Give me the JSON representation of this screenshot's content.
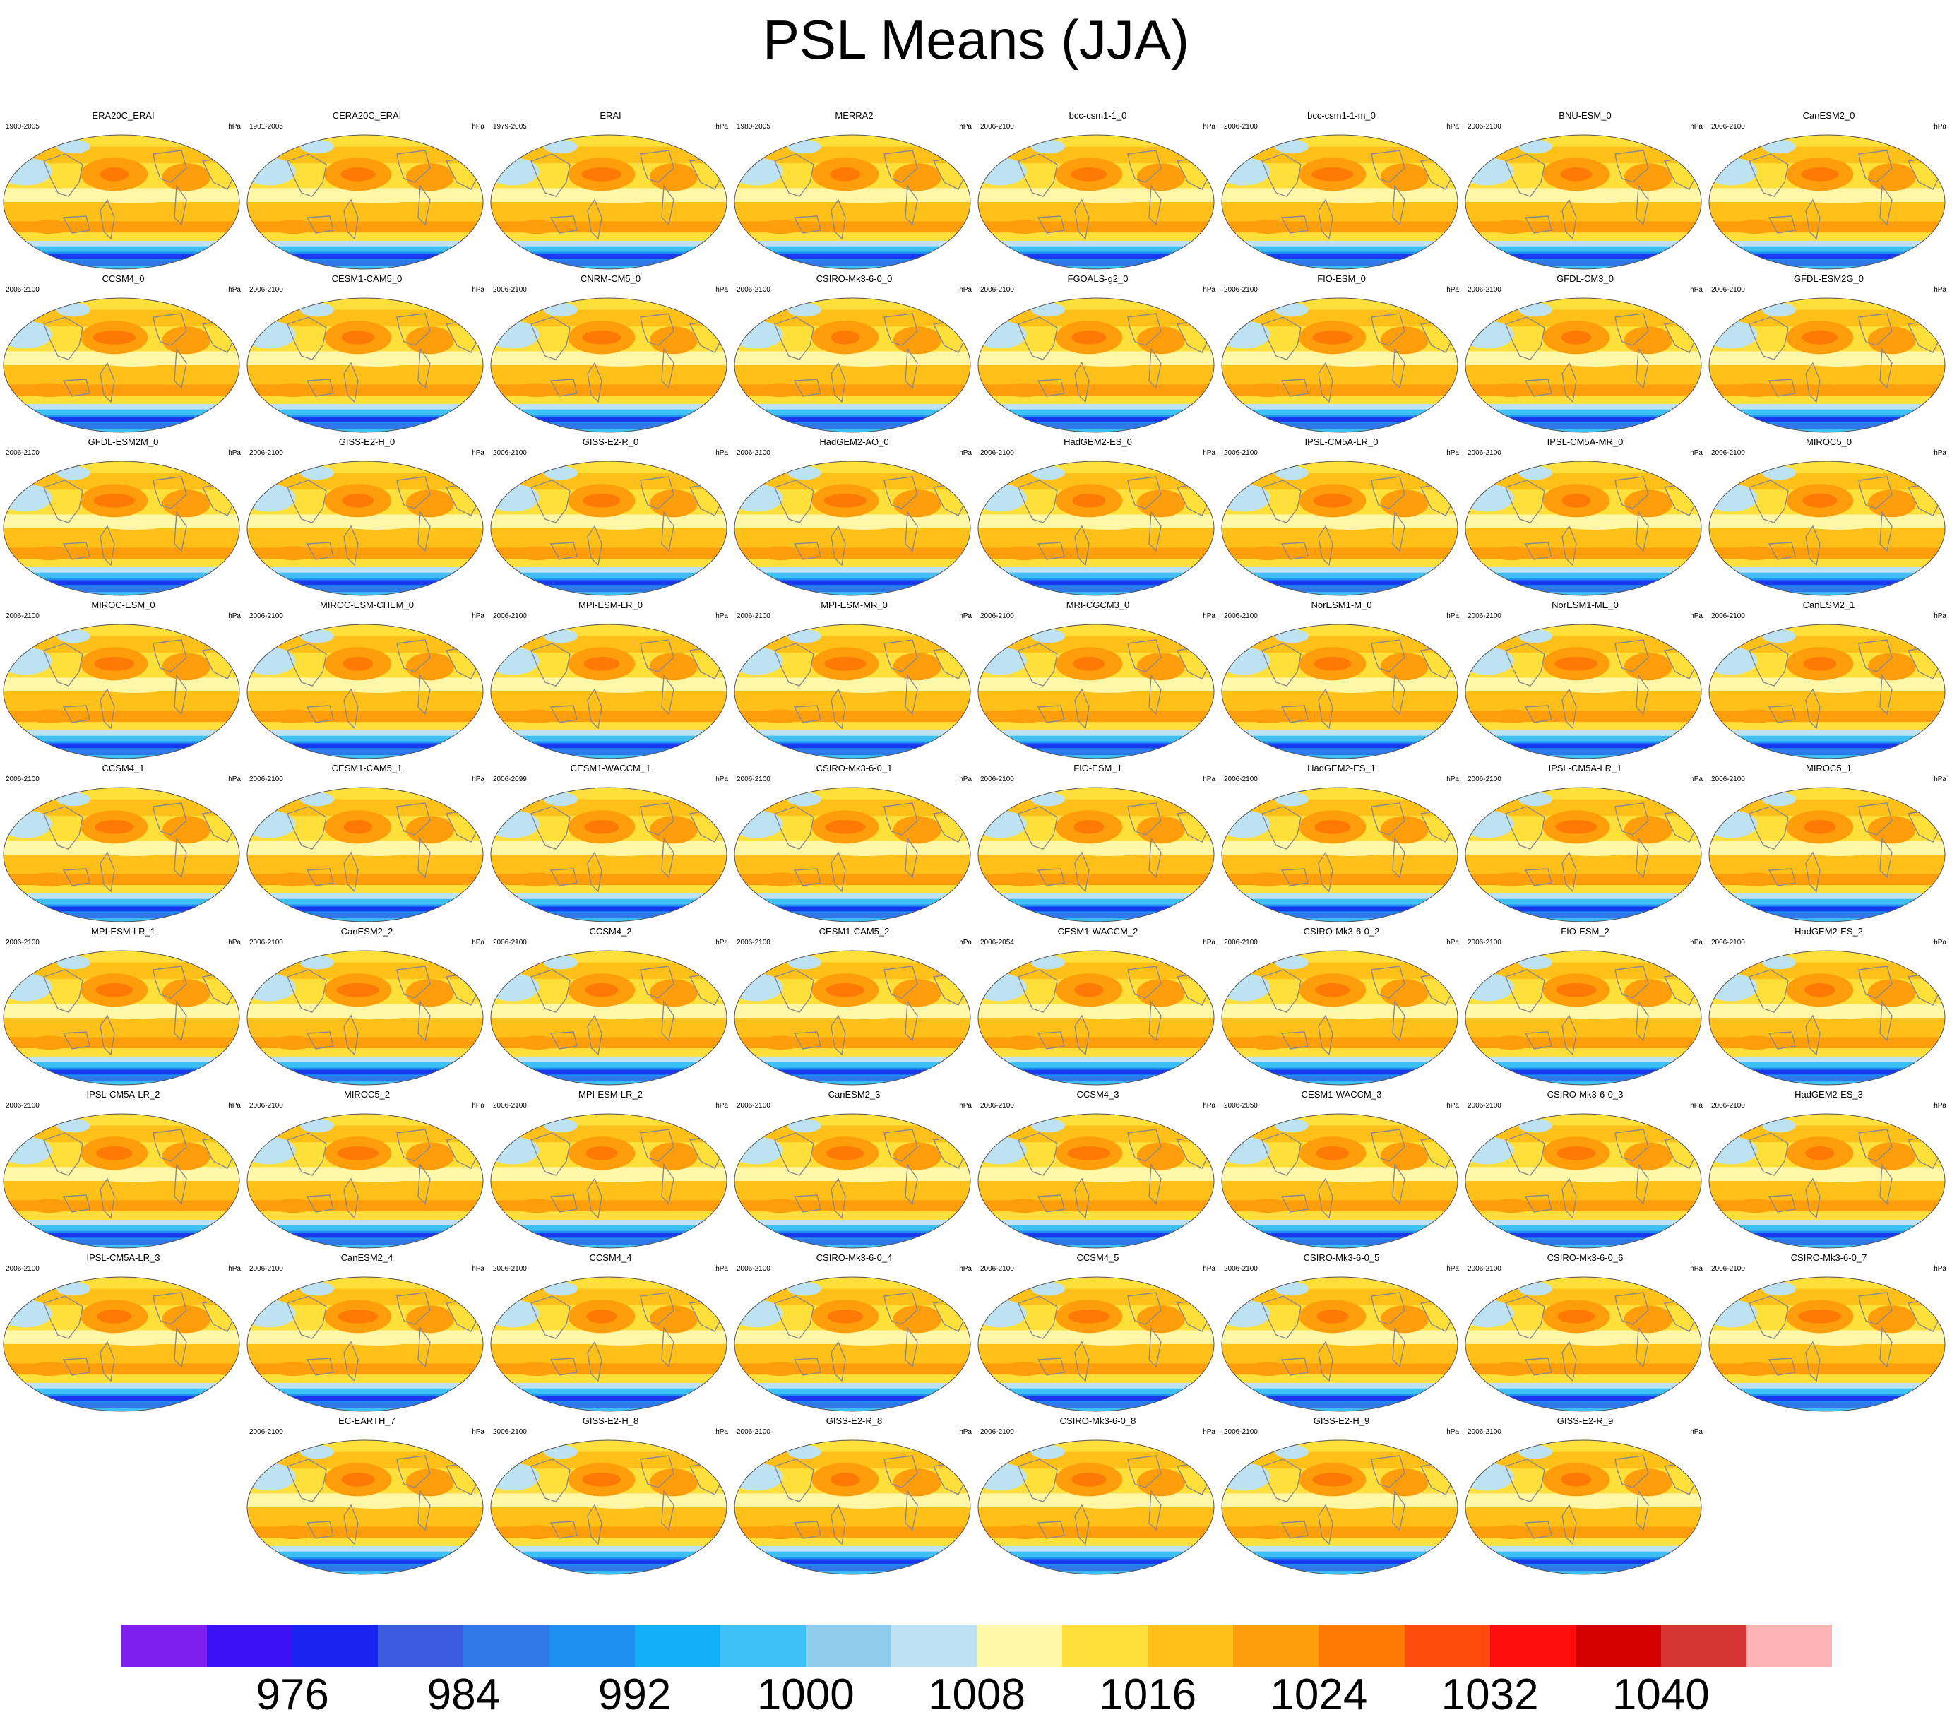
{
  "title": "PSL Means (JJA)",
  "unit": "hPa",
  "colorbar": {
    "colors": [
      "#7f1fef",
      "#3a10f4",
      "#1a22f0",
      "#3b59dc",
      "#2e78ea",
      "#1e90f2",
      "#12b1f7",
      "#3cc0f5",
      "#8fcbeb",
      "#bde2f2",
      "#fff7a8",
      "#ffe03a",
      "#ffc019",
      "#ff9e0a",
      "#ff7a05",
      "#ff4b0e",
      "#ff0c0c",
      "#d40000",
      "#d43434",
      "#ffb4b4"
    ],
    "tick_labels": [
      "976",
      "984",
      "992",
      "1000",
      "1008",
      "1016",
      "1024",
      "1032",
      "1040"
    ]
  },
  "panels": [
    {
      "name": "ERA20C_ERAI",
      "years": "1900-2005"
    },
    {
      "name": "CERA20C_ERAI",
      "years": "1901-2005"
    },
    {
      "name": "ERAI",
      "years": "1979-2005"
    },
    {
      "name": "MERRA2",
      "years": "1980-2005"
    },
    {
      "name": "bcc-csm1-1_0",
      "years": "2006-2100"
    },
    {
      "name": "bcc-csm1-1-m_0",
      "years": "2006-2100"
    },
    {
      "name": "BNU-ESM_0",
      "years": "2006-2100"
    },
    {
      "name": "CanESM2_0",
      "years": "2006-2100"
    },
    {
      "name": "CCSM4_0",
      "years": "2006-2100"
    },
    {
      "name": "CESM1-CAM5_0",
      "years": "2006-2100"
    },
    {
      "name": "CNRM-CM5_0",
      "years": "2006-2100"
    },
    {
      "name": "CSIRO-Mk3-6-0_0",
      "years": "2006-2100"
    },
    {
      "name": "FGOALS-g2_0",
      "years": "2006-2100"
    },
    {
      "name": "FIO-ESM_0",
      "years": "2006-2100"
    },
    {
      "name": "GFDL-CM3_0",
      "years": "2006-2100"
    },
    {
      "name": "GFDL-ESM2G_0",
      "years": "2006-2100"
    },
    {
      "name": "GFDL-ESM2M_0",
      "years": "2006-2100"
    },
    {
      "name": "GISS-E2-H_0",
      "years": "2006-2100"
    },
    {
      "name": "GISS-E2-R_0",
      "years": "2006-2100"
    },
    {
      "name": "HadGEM2-AO_0",
      "years": "2006-2100"
    },
    {
      "name": "HadGEM2-ES_0",
      "years": "2006-2100"
    },
    {
      "name": "IPSL-CM5A-LR_0",
      "years": "2006-2100"
    },
    {
      "name": "IPSL-CM5A-MR_0",
      "years": "2006-2100"
    },
    {
      "name": "MIROC5_0",
      "years": "2006-2100"
    },
    {
      "name": "MIROC-ESM_0",
      "years": "2006-2100"
    },
    {
      "name": "MIROC-ESM-CHEM_0",
      "years": "2006-2100"
    },
    {
      "name": "MPI-ESM-LR_0",
      "years": "2006-2100"
    },
    {
      "name": "MPI-ESM-MR_0",
      "years": "2006-2100"
    },
    {
      "name": "MRI-CGCM3_0",
      "years": "2006-2100"
    },
    {
      "name": "NorESM1-M_0",
      "years": "2006-2100"
    },
    {
      "name": "NorESM1-ME_0",
      "years": "2006-2100"
    },
    {
      "name": "CanESM2_1",
      "years": "2006-2100"
    },
    {
      "name": "CCSM4_1",
      "years": "2006-2100"
    },
    {
      "name": "CESM1-CAM5_1",
      "years": "2006-2100"
    },
    {
      "name": "CESM1-WACCM_1",
      "years": "2006-2099"
    },
    {
      "name": "CSIRO-Mk3-6-0_1",
      "years": "2006-2100"
    },
    {
      "name": "FIO-ESM_1",
      "years": "2006-2100"
    },
    {
      "name": "HadGEM2-ES_1",
      "years": "2006-2100"
    },
    {
      "name": "IPSL-CM5A-LR_1",
      "years": "2006-2100"
    },
    {
      "name": "MIROC5_1",
      "years": "2006-2100"
    },
    {
      "name": "MPI-ESM-LR_1",
      "years": "2006-2100"
    },
    {
      "name": "CanESM2_2",
      "years": "2006-2100"
    },
    {
      "name": "CCSM4_2",
      "years": "2006-2100"
    },
    {
      "name": "CESM1-CAM5_2",
      "years": "2006-2100"
    },
    {
      "name": "CESM1-WACCM_2",
      "years": "2006-2054"
    },
    {
      "name": "CSIRO-Mk3-6-0_2",
      "years": "2006-2100"
    },
    {
      "name": "FIO-ESM_2",
      "years": "2006-2100"
    },
    {
      "name": "HadGEM2-ES_2",
      "years": "2006-2100"
    },
    {
      "name": "IPSL-CM5A-LR_2",
      "years": "2006-2100"
    },
    {
      "name": "MIROC5_2",
      "years": "2006-2100"
    },
    {
      "name": "MPI-ESM-LR_2",
      "years": "2006-2100"
    },
    {
      "name": "CanESM2_3",
      "years": "2006-2100"
    },
    {
      "name": "CCSM4_3",
      "years": "2006-2100"
    },
    {
      "name": "CESM1-WACCM_3",
      "years": "2006-2050"
    },
    {
      "name": "CSIRO-Mk3-6-0_3",
      "years": "2006-2100"
    },
    {
      "name": "HadGEM2-ES_3",
      "years": "2006-2100"
    },
    {
      "name": "IPSL-CM5A-LR_3",
      "years": "2006-2100"
    },
    {
      "name": "CanESM2_4",
      "years": "2006-2100"
    },
    {
      "name": "CCSM4_4",
      "years": "2006-2100"
    },
    {
      "name": "CSIRO-Mk3-6-0_4",
      "years": "2006-2100"
    },
    {
      "name": "CCSM4_5",
      "years": "2006-2100"
    },
    {
      "name": "CSIRO-Mk3-6-0_5",
      "years": "2006-2100"
    },
    {
      "name": "CSIRO-Mk3-6-0_6",
      "years": "2006-2100"
    },
    {
      "name": "CSIRO-Mk3-6-0_7",
      "years": "2006-2100"
    },
    {
      "name": "EC-EARTH_7",
      "years": "2006-2100"
    },
    {
      "name": "GISS-E2-H_8",
      "years": "2006-2100"
    },
    {
      "name": "GISS-E2-R_8",
      "years": "2006-2100"
    },
    {
      "name": "CSIRO-Mk3-6-0_8",
      "years": "2006-2100"
    },
    {
      "name": "GISS-E2-H_9",
      "years": "2006-2100"
    },
    {
      "name": "GISS-E2-R_9",
      "years": "2006-2100"
    }
  ]
}
